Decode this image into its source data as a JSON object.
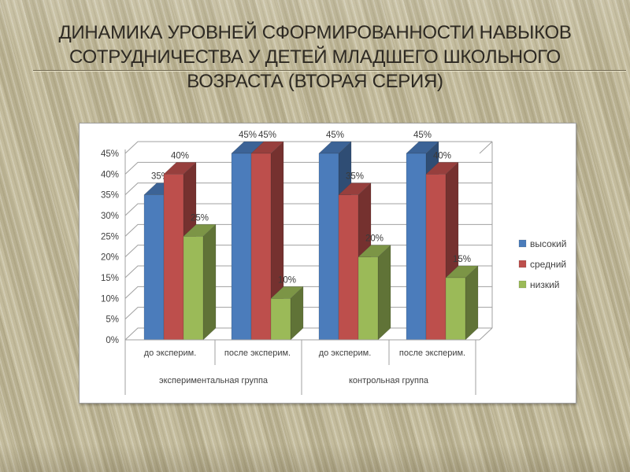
{
  "slide": {
    "title_lines": [
      "ДИНАМИКА УРОВНЕЙ СФОРМИРОВАННОСТИ НАВЫКОВ",
      "СОТРУДНИЧЕСТВА У ДЕТЕЙ МЛАДШЕГО ШКОЛЬНОГО",
      "ВОЗРАСТА (ВТОРАЯ СЕРИЯ)"
    ]
  },
  "theme": {
    "background": "#c0b897",
    "title_text": "#2e2a23",
    "title_rule": "#6f6750",
    "panel_background": "#ffffff",
    "panel_border": "#9d9d9d",
    "grid_line": "#a0a0a0",
    "axis_text": "#3f3f3f",
    "data_label_text": "#3a3a3a"
  },
  "chart_data": {
    "type": "bar",
    "style": "3d-clustered-column",
    "categories": [
      "до эксперим.",
      "после эксперим.",
      "до эксперим.",
      "после эксперим."
    ],
    "category_groups": [
      {
        "label": "экспериментальная группа",
        "span": [
          0,
          1
        ]
      },
      {
        "label": "контрольная группа",
        "span": [
          2,
          3
        ]
      }
    ],
    "series": [
      {
        "name": "высокий",
        "color": "#4b7cbb",
        "values": [
          35,
          45,
          45,
          45
        ]
      },
      {
        "name": "средний",
        "color": "#bd4f4c",
        "values": [
          40,
          45,
          35,
          40
        ]
      },
      {
        "name": "низкий",
        "color": "#9bba58",
        "values": [
          25,
          10,
          20,
          15
        ]
      }
    ],
    "data_label_format": "{v}%",
    "ylim": [
      0,
      45
    ],
    "ytick_step": 5,
    "ytick_labels": [
      "0%",
      "5%",
      "10%",
      "15%",
      "20%",
      "25%",
      "30%",
      "35%",
      "40%",
      "45%"
    ],
    "grid": true,
    "legend": {
      "position": "right",
      "entries": [
        "высокий",
        "средний",
        "низкий"
      ]
    }
  }
}
